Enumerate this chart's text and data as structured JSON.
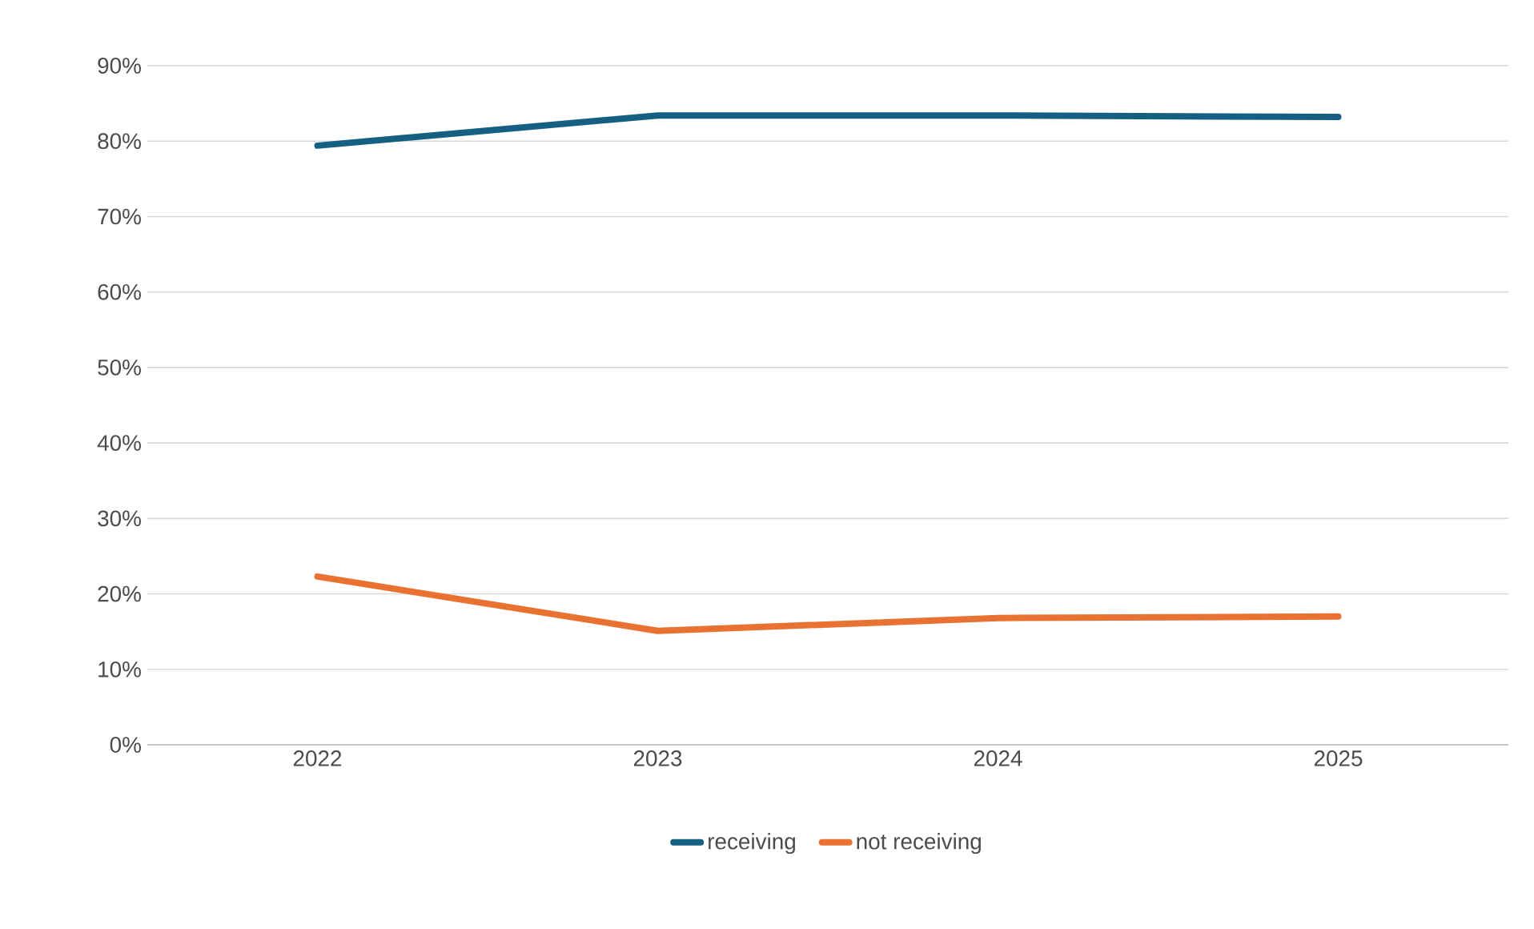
{
  "chart_data": {
    "type": "line",
    "categories": [
      "2022",
      "2023",
      "2024",
      "2025"
    ],
    "series": [
      {
        "name": "receiving",
        "color": "#156082",
        "values": [
          79.4,
          83.4,
          83.4,
          83.2
        ]
      },
      {
        "name": "not receiving",
        "color": "#e97132",
        "values": [
          22.3,
          15.1,
          16.8,
          17.0
        ]
      }
    ],
    "ylim": [
      0,
      90
    ],
    "yticks": [
      {
        "value": 0,
        "label": "0%"
      },
      {
        "value": 10,
        "label": "10%"
      },
      {
        "value": 20,
        "label": "20%"
      },
      {
        "value": 30,
        "label": "30%"
      },
      {
        "value": 40,
        "label": "40%"
      },
      {
        "value": 50,
        "label": "50%"
      },
      {
        "value": 60,
        "label": "60%"
      },
      {
        "value": 70,
        "label": "70%"
      },
      {
        "value": 80,
        "label": "80%"
      },
      {
        "value": 90,
        "label": "90%"
      }
    ],
    "grid": "y",
    "legend": "bottom",
    "marker": "none",
    "line_style": "solid"
  }
}
